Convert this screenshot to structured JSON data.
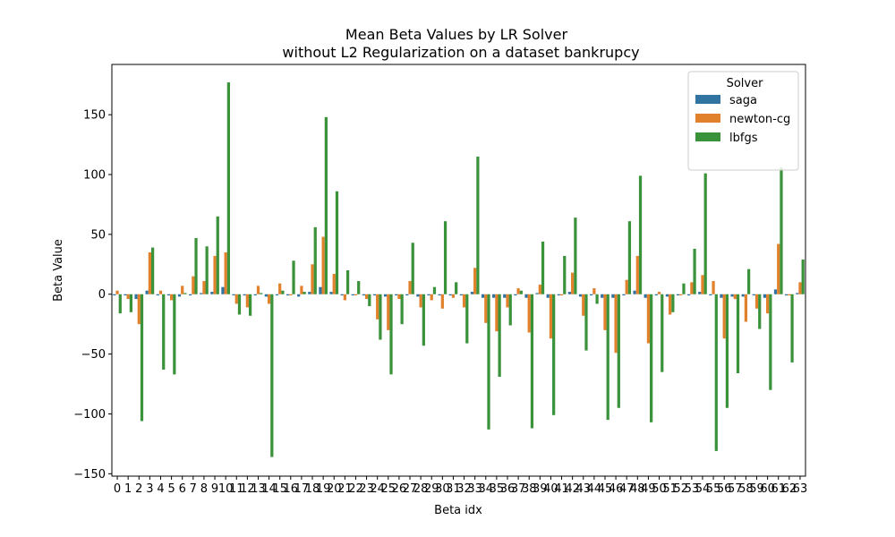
{
  "chart_data": {
    "type": "bar",
    "title": "Mean Beta Values by LR Solver",
    "subtitle": "without L2 Regularization on a dataset bankrupcy",
    "xlabel": "Beta idx",
    "ylabel": "Beta Value",
    "ylim": [
      -152,
      192
    ],
    "yticks": [
      -150,
      -100,
      -50,
      0,
      50,
      100,
      150
    ],
    "categories": [
      "0",
      "1",
      "2",
      "3",
      "4",
      "5",
      "6",
      "7",
      "8",
      "9",
      "10",
      "11",
      "12",
      "13",
      "14",
      "15",
      "16",
      "17",
      "18",
      "19",
      "20",
      "21",
      "22",
      "23",
      "24",
      "25",
      "26",
      "27",
      "28",
      "29",
      "30",
      "31",
      "32",
      "33",
      "34",
      "35",
      "36",
      "37",
      "38",
      "39",
      "40",
      "41",
      "42",
      "43",
      "44",
      "45",
      "46",
      "47",
      "48",
      "49",
      "50",
      "51",
      "52",
      "53",
      "54",
      "55",
      "56",
      "57",
      "58",
      "59",
      "60",
      "61",
      "62",
      "63"
    ],
    "legend": {
      "title": "Solver",
      "position": "top-right"
    },
    "series": [
      {
        "name": "saga",
        "color": "#3274a1",
        "values": [
          -1,
          -1,
          -4,
          3,
          -1,
          -1,
          -2,
          -1,
          1,
          2,
          6,
          -1,
          -1,
          -1,
          -2,
          -1,
          -1,
          -2,
          2,
          6,
          2,
          -1,
          -1,
          -1,
          -1,
          -2,
          -1,
          -1,
          -2,
          -1,
          -1,
          -1,
          -1,
          2,
          -3,
          -3,
          -3,
          -1,
          -3,
          1,
          -3,
          -1,
          2,
          -2,
          -1,
          -3,
          -3,
          -1,
          3,
          -3,
          -1,
          -2,
          -1,
          -1,
          2,
          -1,
          -3,
          -2,
          -2,
          -1,
          -3,
          4,
          -1,
          1
        ]
      },
      {
        "name": "newton-cg",
        "color": "#e1812c",
        "values": [
          3,
          -4,
          -25,
          35,
          3,
          -5,
          7,
          15,
          11,
          32,
          35,
          -8,
          -11,
          7,
          -8,
          9,
          -1,
          7,
          25,
          48,
          17,
          -5,
          -1,
          -4,
          -21,
          -30,
          -4,
          11,
          -11,
          -5,
          -12,
          -3,
          -11,
          22,
          -24,
          -31,
          -11,
          5,
          -32,
          8,
          -37,
          -1,
          18,
          -18,
          5,
          -30,
          -49,
          12,
          32,
          -41,
          2,
          -17,
          -1,
          10,
          16,
          11,
          -37,
          -4,
          -23,
          -12,
          -16,
          42,
          -1,
          10
        ]
      },
      {
        "name": "lbfgs",
        "color": "#3a923a",
        "values": [
          -16,
          -15,
          -106,
          39,
          -63,
          -67,
          1,
          47,
          40,
          65,
          177,
          -17,
          -18,
          1,
          -136,
          3,
          28,
          2,
          56,
          148,
          86,
          20,
          11,
          -10,
          -38,
          -67,
          -25,
          43,
          -43,
          6,
          61,
          10,
          -41,
          115,
          -113,
          -69,
          -26,
          3,
          -112,
          44,
          -101,
          32,
          64,
          -47,
          -8,
          -105,
          -95,
          61,
          99,
          -107,
          -65,
          -15,
          9,
          38,
          101,
          -131,
          -95,
          -66,
          21,
          -29,
          -80,
          106,
          -57,
          29
        ]
      }
    ]
  }
}
